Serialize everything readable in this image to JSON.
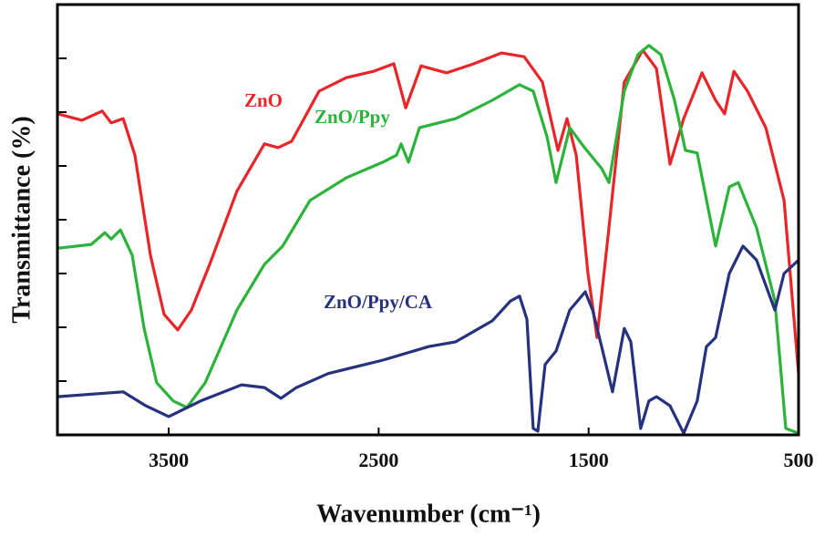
{
  "chart_data": {
    "type": "line",
    "x_label": "Wavenumber (cm⁻¹)",
    "y_label": "Transmittance (%)",
    "xlim": [
      4030,
      500
    ],
    "xticks": [
      3500,
      2500,
      1500,
      500
    ],
    "ylim": [
      0,
      8
    ],
    "yticks": [
      1,
      2,
      3,
      4,
      5,
      6,
      7
    ],
    "series": [
      {
        "name": "ZnO",
        "color": "#e8262a",
        "x": [
          4030,
          3913,
          3817,
          3774,
          3717,
          3661,
          3587,
          3522,
          3457,
          3392,
          3305,
          3175,
          3044,
          2979,
          2914,
          2784,
          2654,
          2524,
          2428,
          2371,
          2298,
          2176,
          2046,
          1915,
          1807,
          1720,
          1646,
          1603,
          1559,
          1503,
          1460,
          1403,
          1330,
          1242,
          1177,
          1112,
          1047,
          960,
          895,
          852,
          808,
          743,
          656,
          569,
          500
        ],
        "values": [
          5.97,
          5.85,
          6.02,
          5.8,
          5.88,
          5.2,
          3.34,
          2.24,
          1.95,
          2.32,
          3.17,
          4.53,
          5.41,
          5.34,
          5.46,
          6.39,
          6.64,
          6.76,
          6.9,
          6.08,
          6.86,
          6.73,
          6.9,
          7.1,
          7.03,
          6.56,
          5.29,
          5.88,
          5.2,
          3.0,
          1.81,
          3.85,
          6.56,
          7.15,
          6.81,
          5.03,
          5.88,
          6.73,
          6.22,
          5.97,
          6.76,
          6.39,
          5.71,
          4.36,
          1.14
        ]
      },
      {
        "name": "ZnO/Ppy",
        "color": "#2bb33a",
        "x": [
          4030,
          3869,
          3804,
          3774,
          3730,
          3674,
          3617,
          3557,
          3478,
          3413,
          3326,
          3175,
          3044,
          2957,
          2827,
          2654,
          2480,
          2415,
          2393,
          2358,
          2306,
          2133,
          1959,
          1829,
          1764,
          1698,
          1655,
          1590,
          1525,
          1438,
          1403,
          1330,
          1265,
          1213,
          1156,
          1091,
          1039,
          983,
          895,
          830,
          787,
          700,
          613,
          561,
          500
        ],
        "values": [
          3.47,
          3.54,
          3.76,
          3.64,
          3.81,
          3.34,
          1.98,
          0.97,
          0.63,
          0.51,
          0.97,
          2.32,
          3.17,
          3.51,
          4.36,
          4.78,
          5.07,
          5.2,
          5.41,
          5.07,
          5.71,
          5.88,
          6.22,
          6.51,
          6.39,
          5.54,
          4.69,
          5.71,
          5.37,
          4.95,
          4.69,
          6.39,
          7.07,
          7.24,
          7.07,
          6.22,
          5.29,
          5.24,
          3.51,
          4.61,
          4.69,
          3.85,
          2.49,
          0.12,
          0.03
        ]
      },
      {
        "name": "ZnO/Ppy/CA",
        "color": "#27327f",
        "x": [
          4030,
          3717,
          3609,
          3500,
          3348,
          3153,
          3044,
          2966,
          2892,
          2740,
          2480,
          2263,
          2133,
          1959,
          1872,
          1829,
          1794,
          1764,
          1742,
          1707,
          1655,
          1590,
          1516,
          1481,
          1438,
          1386,
          1330,
          1299,
          1252,
          1213,
          1177,
          1112,
          1047,
          983,
          939,
          895,
          830,
          765,
          700,
          613,
          569,
          500
        ],
        "values": [
          0.71,
          0.8,
          0.54,
          0.34,
          0.63,
          0.93,
          0.88,
          0.68,
          0.88,
          1.14,
          1.39,
          1.64,
          1.73,
          2.12,
          2.49,
          2.58,
          2.15,
          0.12,
          0.07,
          1.31,
          1.56,
          2.32,
          2.66,
          2.32,
          1.64,
          0.8,
          1.98,
          1.73,
          0.12,
          0.63,
          0.71,
          0.54,
          0.03,
          0.63,
          1.64,
          1.81,
          3.0,
          3.51,
          3.25,
          2.32,
          3.0,
          3.25
        ]
      }
    ]
  }
}
